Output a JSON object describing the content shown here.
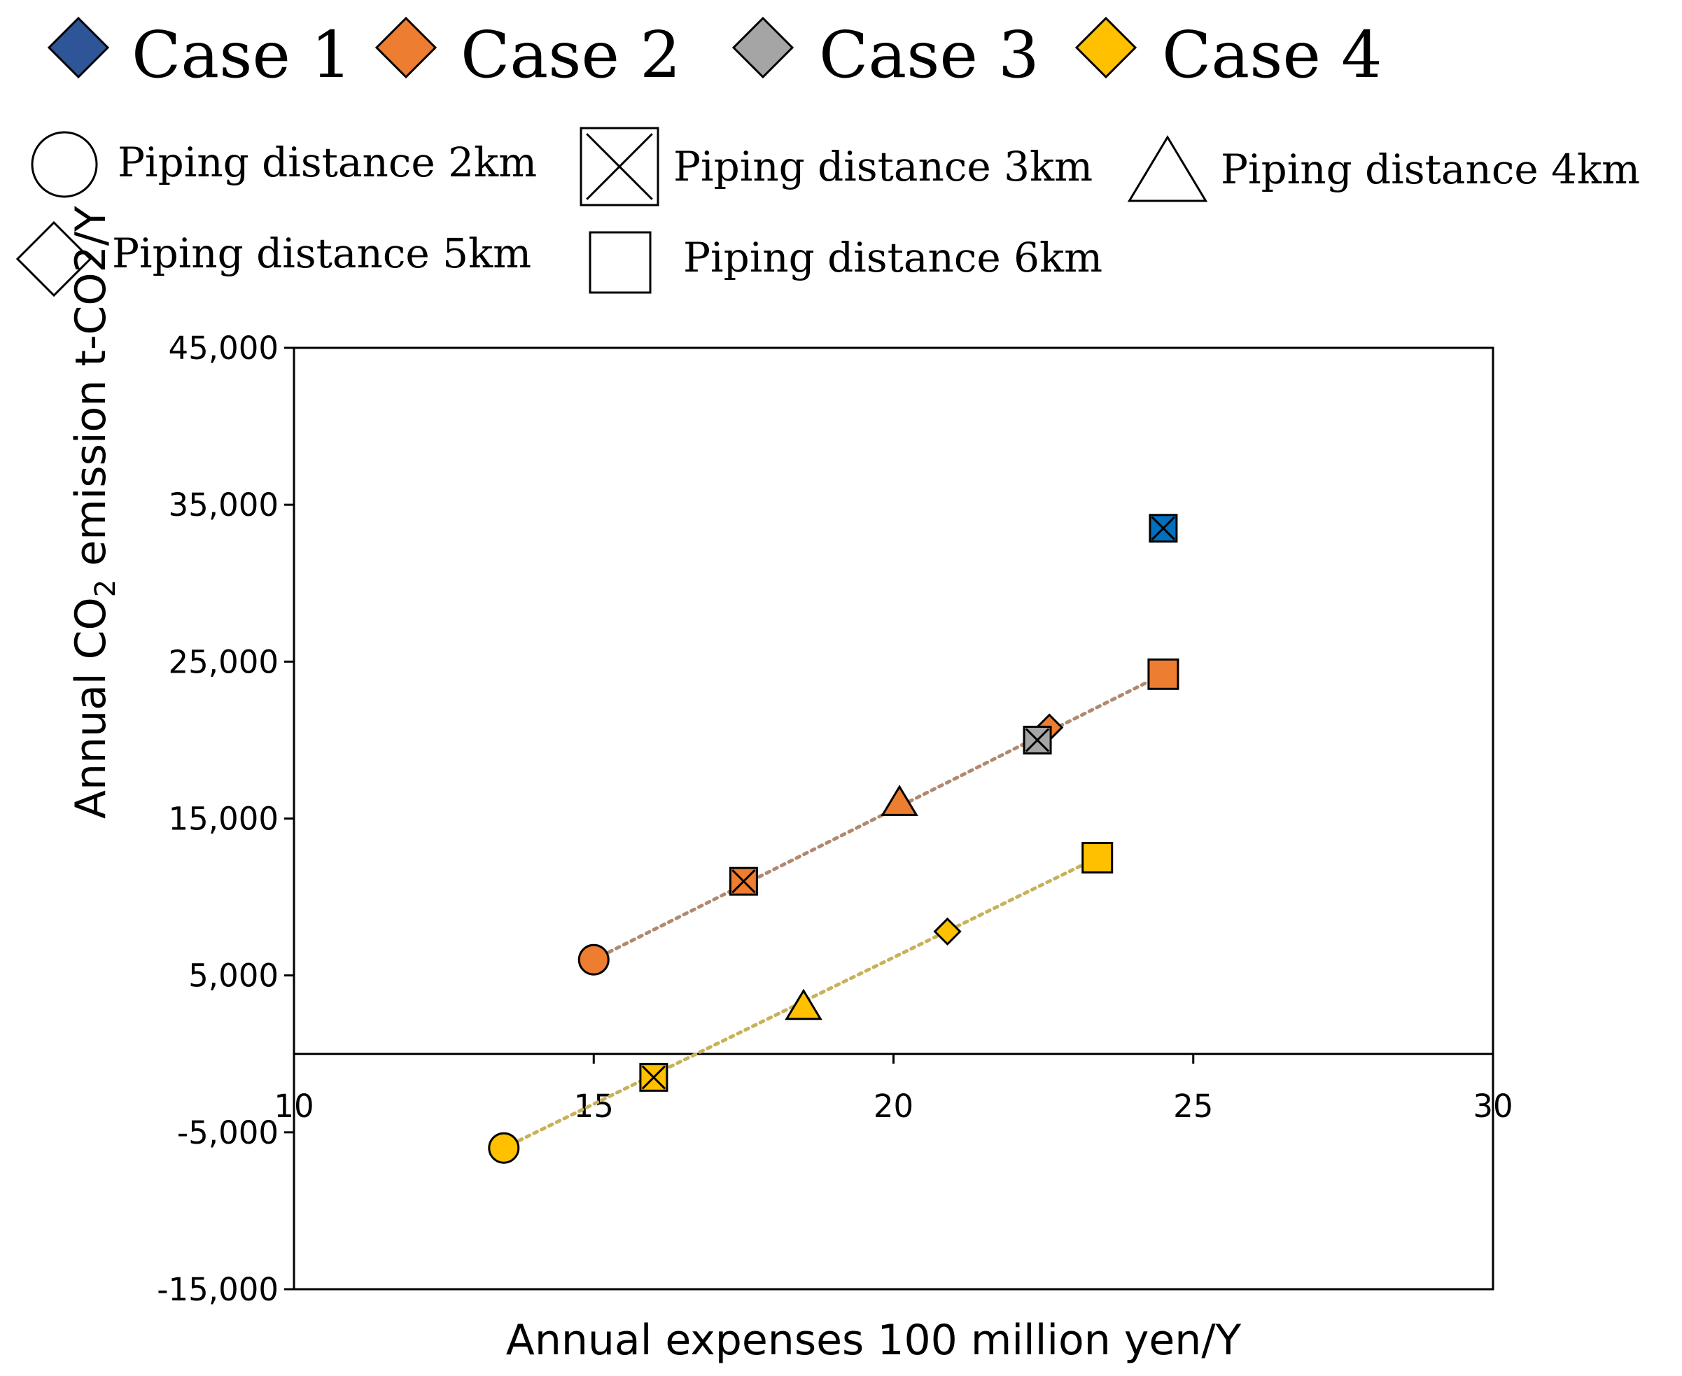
{
  "chart_data": {
    "type": "scatter",
    "title": "",
    "xlabel": "Annual expenses 100 million yen/Y",
    "ylabel_prefix": "Annual CO",
    "ylabel_sub": "2",
    "ylabel_suffix": " emission t-CO2/Y",
    "xlim": [
      10,
      30
    ],
    "ylim": [
      -15000,
      45000
    ],
    "x_ticks": [
      "10",
      "15",
      "20",
      "25",
      "30"
    ],
    "y_ticks": [
      "45,000",
      "35,000",
      "25,000",
      "15,000",
      "5,000",
      "-5,000",
      "-15,000"
    ],
    "grid": false,
    "legend_position": "top",
    "case_legend": [
      {
        "name": "Case 1",
        "color": "#2E5597"
      },
      {
        "name": "Case 2",
        "color": "#ED7D31"
      },
      {
        "name": "Case 3",
        "color": "#A5A5A5"
      },
      {
        "name": "Case 4",
        "color": "#FFC000"
      }
    ],
    "marker_legend": [
      {
        "label": "Piping distance 2km",
        "marker": "circle"
      },
      {
        "label": "Piping distance 3km",
        "marker": "x-box"
      },
      {
        "label": "Piping distance 4km",
        "marker": "triangle"
      },
      {
        "label": "Piping distance 5km",
        "marker": "diamond"
      },
      {
        "label": "Piping distance 6km",
        "marker": "square"
      }
    ],
    "series": [
      {
        "name": "Case 1",
        "color": "#0070C0",
        "trendline": false,
        "points": [
          {
            "x": 24.5,
            "y": 33500,
            "marker": "x-box"
          }
        ]
      },
      {
        "name": "Case 2",
        "color": "#ED7D31",
        "trendline": true,
        "trend_color": "#B08970",
        "points": [
          {
            "x": 15.0,
            "y": 6000,
            "marker": "circle"
          },
          {
            "x": 17.5,
            "y": 11000,
            "marker": "x-box"
          },
          {
            "x": 20.1,
            "y": 16000,
            "marker": "triangle"
          },
          {
            "x": 22.6,
            "y": 20800,
            "marker": "diamond"
          },
          {
            "x": 24.5,
            "y": 24200,
            "marker": "square"
          }
        ]
      },
      {
        "name": "Case 3",
        "color": "#A5A5A5",
        "trendline": false,
        "points": [
          {
            "x": 22.4,
            "y": 20000,
            "marker": "x-box"
          }
        ]
      },
      {
        "name": "Case 4",
        "color": "#FFC000",
        "trendline": true,
        "trend_color": "#C7B25A",
        "points": [
          {
            "x": 13.5,
            "y": -6000,
            "marker": "circle"
          },
          {
            "x": 16.0,
            "y": -1500,
            "marker": "x-box"
          },
          {
            "x": 18.5,
            "y": 3000,
            "marker": "triangle"
          },
          {
            "x": 20.9,
            "y": 7800,
            "marker": "diamond"
          },
          {
            "x": 23.4,
            "y": 12500,
            "marker": "square"
          }
        ]
      }
    ]
  }
}
